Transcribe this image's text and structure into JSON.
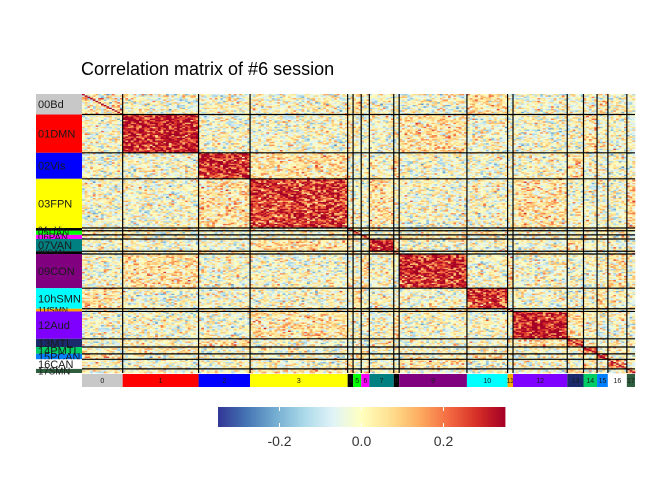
{
  "chart_data": {
    "type": "heatmap",
    "title": "Correlation matrix of #6 session",
    "xlabel": "",
    "ylabel": "",
    "networks": [
      {
        "row_label": "00Bd",
        "col_label": "0",
        "color": "#c8c8c8",
        "size": 15,
        "level": 0.02
      },
      {
        "row_label": "01DMN",
        "col_label": "1",
        "color": "#ff0000",
        "size": 28,
        "level": 0.3
      },
      {
        "row_label": "02Vis",
        "col_label": "2",
        "color": "#0000ff",
        "size": 19,
        "level": 0.28
      },
      {
        "row_label": "03FPN",
        "col_label": "3",
        "color": "#ffff00",
        "size": 36,
        "level": 0.27
      },
      {
        "row_label": "04mVis",
        "col_label": "4",
        "color": "#000000",
        "size": 2,
        "level": 0.15
      },
      {
        "row_label": "05DAN",
        "col_label": "5",
        "color": "#00ff00",
        "size": 3,
        "level": 0.15
      },
      {
        "row_label": "06PAN",
        "col_label": "6",
        "color": "#ff00ff",
        "size": 3,
        "level": 0.1
      },
      {
        "row_label": "07VAN",
        "col_label": "7",
        "color": "#008080",
        "size": 9,
        "level": 0.3
      },
      {
        "row_label": "08SAN",
        "col_label": "8",
        "color": "#000000",
        "size": 2,
        "level": 0.1
      },
      {
        "row_label": "09CON",
        "col_label": "9",
        "color": "#800080",
        "size": 25,
        "level": 0.28
      },
      {
        "row_label": "10hSMN",
        "col_label": "10",
        "color": "#00ffff",
        "size": 15,
        "level": 0.25
      },
      {
        "row_label": "11fSMN",
        "col_label": "11",
        "color": "#ffa500",
        "size": 2,
        "level": 0.1
      },
      {
        "row_label": "12Aud",
        "col_label": "12",
        "color": "#8000ff",
        "size": 20,
        "level": 0.3
      },
      {
        "row_label": "13MTL",
        "col_label": "13",
        "color": "#1a2a6c",
        "size": 6,
        "level": 0.2
      },
      {
        "row_label": "14PMTL",
        "col_label": "14",
        "color": "#00cc66",
        "size": 5,
        "level": 0.2
      },
      {
        "row_label": "15PCAN",
        "col_label": "15",
        "color": "#0080ff",
        "size": 4,
        "level": 0.2
      },
      {
        "row_label": "16CAN",
        "col_label": "16",
        "color": "#ffffff",
        "size": 7,
        "level": 0.15
      },
      {
        "row_label": "17SMN",
        "col_label": "17",
        "color": "#2e5e3e",
        "size": 3,
        "level": 0.2
      }
    ],
    "colorscale": {
      "palette": "RdYlBu (reversed)",
      "colors": [
        "#313695",
        "#4575b4",
        "#74add1",
        "#abd9e9",
        "#e0f3f8",
        "#ffffbf",
        "#fee090",
        "#fdae61",
        "#f46d43",
        "#d73027",
        "#a50026"
      ],
      "range": [
        -0.35,
        0.35
      ],
      "ticks": [
        -0.2,
        0.0,
        0.2
      ],
      "tick_labels": [
        "-0.2",
        "0.0",
        "0.2"
      ]
    },
    "legend_placement": "bottom",
    "grid": false
  }
}
